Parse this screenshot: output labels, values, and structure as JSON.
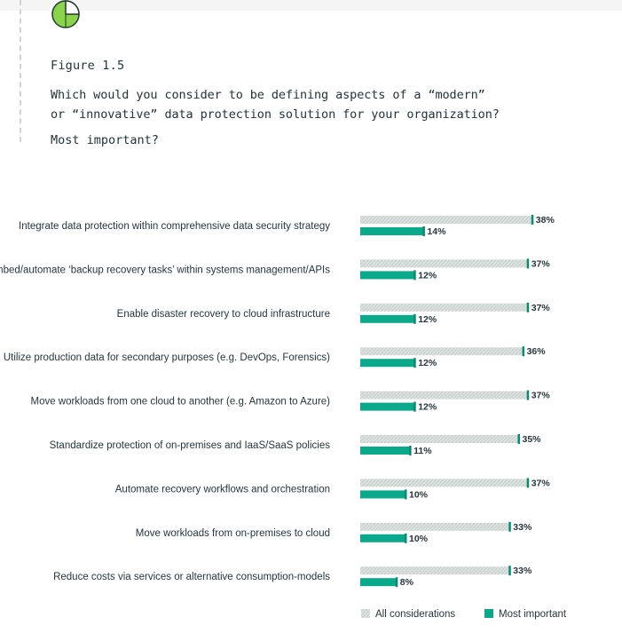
{
  "figure": {
    "label": "Figure 1.5",
    "question": "Which would you consider to be defining aspects of a “modern”\nor “innovative” data protection solution for your organization?",
    "subquestion": "Most important?"
  },
  "colors": {
    "all_considerations": "#d4dcd8",
    "most_important": "#0aa98b",
    "marker": "#0a8a70",
    "icon_green": "#8bd34a",
    "icon_dark": "#1f3b2a"
  },
  "icon": "pie-chart-icon",
  "chart_data": {
    "type": "bar",
    "orientation": "horizontal",
    "categories": [
      "Integrate data protection within comprehensive data security strategy",
      "Embed/automate ‘backup recovery tasks’ within systems management/APIs",
      "Enable disaster recovery to cloud infrastructure",
      "Utilize production data for secondary purposes (e.g. DevOps, Forensics)",
      "Move workloads from one cloud to another (e.g. Amazon to Azure)",
      "Standardize  protection of on-premises and IaaS/SaaS policies",
      "Automate recovery workflows and orchestration",
      "Move workloads from on-premises to cloud",
      "Reduce costs via services or alternative consumption-models"
    ],
    "series": [
      {
        "name": "All considerations",
        "values": [
          38,
          37,
          37,
          36,
          37,
          35,
          37,
          33,
          33
        ],
        "labels": [
          "38%",
          "37%",
          "37%",
          "36%",
          "37%",
          "35%",
          "37%",
          "33%",
          "33%"
        ]
      },
      {
        "name": "Most important",
        "values": [
          14,
          12,
          12,
          12,
          12,
          11,
          10,
          10,
          8
        ],
        "labels": [
          "14%",
          "12%",
          "12%",
          "12%",
          "12%",
          "11%",
          "10%",
          "10%",
          "8%"
        ]
      }
    ],
    "unit": "%",
    "legend_position": "bottom-right",
    "grid": false
  }
}
